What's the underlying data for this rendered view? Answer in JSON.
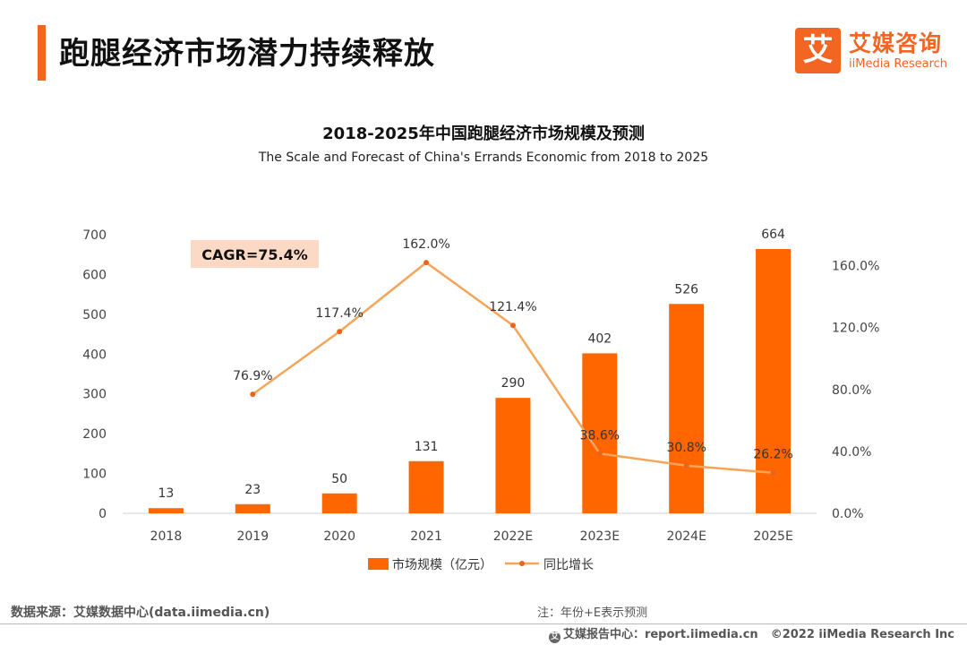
{
  "header": {
    "title": "跑腿经济市场潜力持续释放"
  },
  "logo": {
    "mark": "艾",
    "cn": "艾媒咨询",
    "en": "iiMedia Research"
  },
  "chart_data": {
    "type": "bar",
    "title": "2018-2025年中国跑腿经济市场规模及预测",
    "subtitle": "The Scale and Forecast of China's Errands Economic from 2018 to 2025",
    "categories": [
      "2018",
      "2019",
      "2020",
      "2021",
      "2022E",
      "2023E",
      "2024E",
      "2025E"
    ],
    "series": [
      {
        "name": "市场规模（亿元）",
        "type": "bar",
        "axis": "left",
        "color": "#ff6600",
        "values": [
          13,
          23,
          50,
          131,
          290,
          402,
          526,
          664
        ],
        "labels": [
          "13",
          "23",
          "50",
          "131",
          "290",
          "402",
          "526",
          "664"
        ]
      },
      {
        "name": "同比增长",
        "type": "line",
        "axis": "right",
        "color": "#f5a55a",
        "values": [
          null,
          76.9,
          117.4,
          162.0,
          121.4,
          38.6,
          30.8,
          26.2
        ],
        "labels": [
          null,
          "76.9%",
          "117.4%",
          "162.0%",
          "121.4%",
          "38.6%",
          "30.8%",
          "26.2%"
        ]
      }
    ],
    "y_left": {
      "min": 0,
      "max": 700,
      "ticks": [
        "0",
        "100",
        "200",
        "300",
        "400",
        "500",
        "600",
        "700"
      ]
    },
    "y_right": {
      "min": 0,
      "max": 180,
      "ticks": [
        "0.0%",
        "40.0%",
        "80.0%",
        "120.0%",
        "160.0%"
      ],
      "tick_values": [
        0,
        40,
        80,
        120,
        160
      ]
    },
    "annotation": "CAGR=75.4%",
    "grid": false,
    "legend_position": "bottom-center"
  },
  "footer": {
    "source": "数据来源：艾媒数据中心(data.iimedia.cn)",
    "note": "注：年份+E表示预测",
    "report_icon": "艾",
    "report": "艾媒报告中心：report.iimedia.cn",
    "copyright": "©2022  iiMedia Research  Inc"
  }
}
